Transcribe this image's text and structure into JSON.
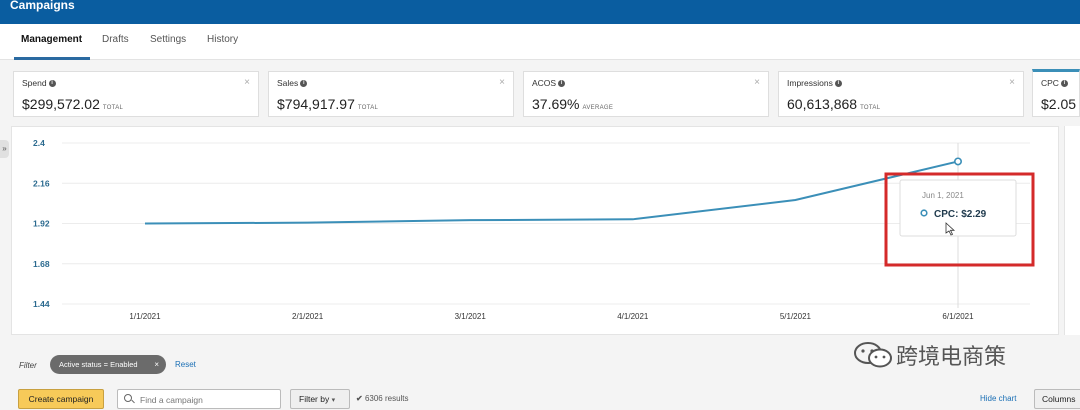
{
  "header": {
    "title": "Campaigns"
  },
  "tabs": [
    "Management",
    "Drafts",
    "Settings",
    "History"
  ],
  "metrics": [
    {
      "label": "Spend",
      "value": "$299,572.02",
      "sub": "TOTAL"
    },
    {
      "label": "Sales",
      "value": "$794,917.97",
      "sub": "TOTAL"
    },
    {
      "label": "ACOS",
      "value": "37.69%",
      "sub": "AVERAGE"
    },
    {
      "label": "Impressions",
      "value": "60,613,868",
      "sub": "TOTAL"
    },
    {
      "label": "CPC",
      "value": "$2.05",
      "sub": ""
    }
  ],
  "chart_data": {
    "type": "line",
    "title": "",
    "xlabel": "",
    "ylabel": "",
    "categories": [
      "1/1/2021",
      "2/1/2021",
      "3/1/2021",
      "4/1/2021",
      "5/1/2021",
      "6/1/2021"
    ],
    "series": [
      {
        "name": "CPC",
        "values": [
          1.92,
          1.925,
          1.94,
          1.945,
          2.06,
          2.29
        ]
      }
    ],
    "y_ticks": [
      "2.4",
      "2.16",
      "1.92",
      "1.68",
      "1.44"
    ],
    "ylim": [
      1.44,
      2.4
    ],
    "grid": true,
    "color": "#3b8fb8",
    "tooltip": {
      "date": "Jun 1, 2021",
      "label": "CPC: $2.29"
    },
    "highlight_color": "#d42a2a"
  },
  "filter": {
    "label": "Filter",
    "chip": "Active status = Enabled",
    "reset": "Reset"
  },
  "toolbar": {
    "create": "Create campaign",
    "search_placeholder": "Find a campaign",
    "filter_by": "Filter by",
    "results": "6306 results",
    "hide_chart": "Hide chart",
    "columns": "Columns"
  },
  "watermark": {
    "text": "跨境电商策"
  }
}
